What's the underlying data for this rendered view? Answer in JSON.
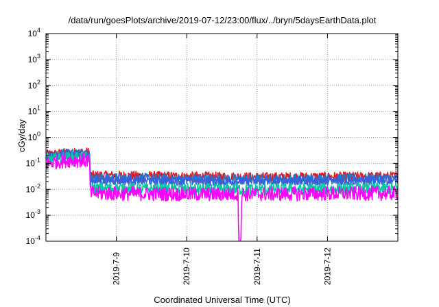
{
  "chart_data": {
    "type": "line",
    "title": "/data/run/goesPlots/archive/2019-07-12/23:00/flux/../bryn/5daysEarthData.plot",
    "xlabel": "Coordinated Universal Time (UTC)",
    "ylabel": "cGy/day",
    "yscale": "log",
    "ylim_exponent": [
      -4,
      4
    ],
    "y_ticks": [
      {
        "base": "10",
        "exp": "-4"
      },
      {
        "base": "10",
        "exp": "-3"
      },
      {
        "base": "10",
        "exp": "-2"
      },
      {
        "base": "10",
        "exp": "-1"
      },
      {
        "base": "10",
        "exp": "0"
      },
      {
        "base": "10",
        "exp": "1"
      },
      {
        "base": "10",
        "exp": "2"
      },
      {
        "base": "10",
        "exp": "3"
      },
      {
        "base": "10",
        "exp": "4"
      }
    ],
    "xlim_days": [
      0,
      5
    ],
    "x_ticks": [
      {
        "label": "2019-7-9",
        "day": 1.0
      },
      {
        "label": "2019-7-10",
        "day": 2.0
      },
      {
        "label": "2019-7-11",
        "day": 3.0
      },
      {
        "label": "2019-7-12",
        "day": 4.0
      }
    ],
    "grid": true,
    "legend": "none",
    "series": [
      {
        "color": "#e41a1c",
        "points": [
          [
            0,
            0.22
          ],
          [
            0.3,
            0.26
          ],
          [
            0.62,
            0.27
          ],
          [
            0.63,
            0.035
          ],
          [
            2.0,
            0.032
          ],
          [
            3.0,
            0.03
          ],
          [
            4.0,
            0.031
          ],
          [
            5,
            0.032
          ]
        ],
        "noise": 0.35
      },
      {
        "color": "#1f77d0",
        "points": [
          [
            0,
            0.2
          ],
          [
            0.3,
            0.24
          ],
          [
            0.62,
            0.25
          ],
          [
            0.63,
            0.027
          ],
          [
            2.0,
            0.025
          ],
          [
            3.0,
            0.024
          ],
          [
            4.0,
            0.025
          ],
          [
            5,
            0.026
          ]
        ],
        "noise": 0.4
      },
      {
        "color": "#3a5fd8",
        "points": [
          [
            0,
            0.18
          ],
          [
            0.3,
            0.22
          ],
          [
            0.62,
            0.23
          ],
          [
            0.63,
            0.022
          ],
          [
            2.0,
            0.021
          ],
          [
            3.0,
            0.02
          ],
          [
            4.0,
            0.021
          ],
          [
            5,
            0.022
          ]
        ],
        "noise": 0.35
      },
      {
        "color": "#00c8a0",
        "points": [
          [
            0,
            0.14
          ],
          [
            0.3,
            0.17
          ],
          [
            0.62,
            0.17
          ],
          [
            0.63,
            0.011
          ],
          [
            2.0,
            0.01
          ],
          [
            3.0,
            0.01
          ],
          [
            4.0,
            0.0105
          ],
          [
            5,
            0.011
          ]
        ],
        "noise": 0.45
      },
      {
        "color": "#ff00ff",
        "points": [
          [
            0,
            0.1
          ],
          [
            0.3,
            0.13
          ],
          [
            0.62,
            0.13
          ],
          [
            0.63,
            0.007
          ],
          [
            2.0,
            0.0065
          ],
          [
            2.73,
            0.0065
          ],
          [
            2.74,
            0.0001
          ],
          [
            2.77,
            0.0001
          ],
          [
            2.78,
            0.0065
          ],
          [
            3.0,
            0.0065
          ],
          [
            4.0,
            0.0068
          ],
          [
            5,
            0.007
          ]
        ],
        "noise": 0.55
      }
    ]
  }
}
